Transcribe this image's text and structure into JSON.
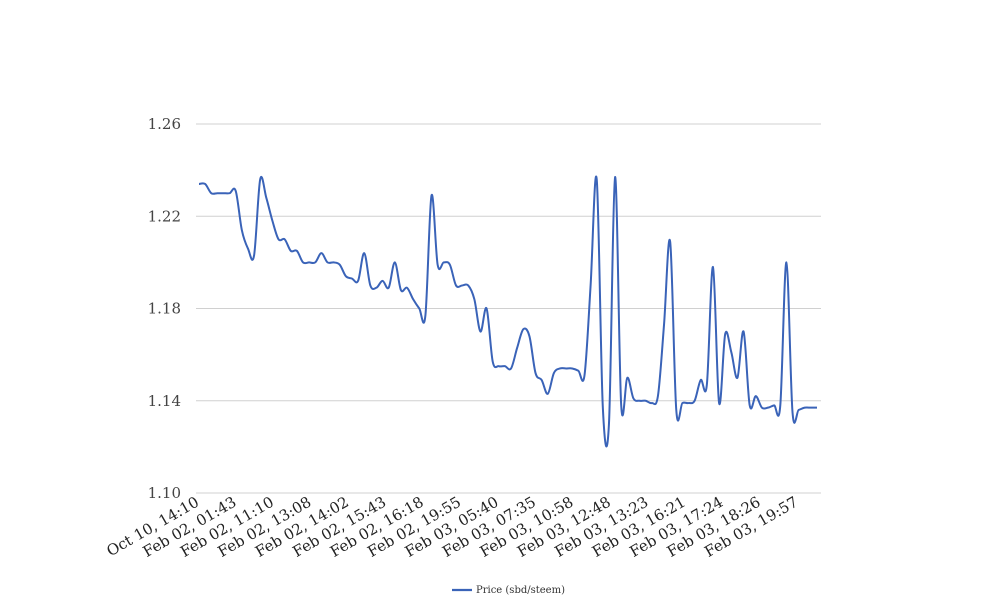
{
  "chart_data": {
    "type": "line",
    "title": "",
    "xlabel": "",
    "ylabel": "",
    "ylim": [
      1.1,
      1.26
    ],
    "yticks": [
      "1.10",
      "1.14",
      "1.18",
      "1.22",
      "1.26"
    ],
    "xtick_labels": [
      "Oct 10, 14:10",
      "Feb 02, 01:43",
      "Feb 02, 11:10",
      "Feb 02, 13:08",
      "Feb 02, 14:02",
      "Feb 02, 15:43",
      "Feb 02, 16:18",
      "Feb 02, 19:55",
      "Feb 03, 05:40",
      "Feb 03, 07:35",
      "Feb 03, 10:58",
      "Feb 03, 12:48",
      "Feb 03, 13:23",
      "Feb 03, 16:21",
      "Feb 03, 17:24",
      "Feb 03, 18:26",
      "Feb 03, 19:57"
    ],
    "grid": true,
    "legend_position": "bottom-center",
    "series": [
      {
        "name": "Price (sbd/steem)",
        "color": "#3a63b8",
        "values": [
          1.234,
          1.234,
          1.23,
          1.23,
          1.23,
          1.23,
          1.231,
          1.214,
          1.206,
          1.203,
          1.236,
          1.228,
          1.218,
          1.21,
          1.21,
          1.205,
          1.205,
          1.2,
          1.2,
          1.2,
          1.204,
          1.2,
          1.2,
          1.199,
          1.194,
          1.193,
          1.192,
          1.204,
          1.19,
          1.189,
          1.192,
          1.189,
          1.2,
          1.188,
          1.189,
          1.184,
          1.18,
          1.177,
          1.229,
          1.199,
          1.2,
          1.199,
          1.19,
          1.19,
          1.19,
          1.184,
          1.17,
          1.18,
          1.157,
          1.155,
          1.155,
          1.154,
          1.163,
          1.171,
          1.168,
          1.152,
          1.149,
          1.143,
          1.152,
          1.154,
          1.154,
          1.154,
          1.153,
          1.151,
          1.19,
          1.236,
          1.137,
          1.13,
          1.237,
          1.138,
          1.15,
          1.141,
          1.14,
          1.14,
          1.139,
          1.142,
          1.173,
          1.209,
          1.136,
          1.139,
          1.139,
          1.14,
          1.149,
          1.147,
          1.198,
          1.139,
          1.169,
          1.161,
          1.15,
          1.17,
          1.138,
          1.142,
          1.137,
          1.137,
          1.138,
          1.138,
          1.2,
          1.135,
          1.136,
          1.137,
          1.137,
          1.137
        ]
      }
    ]
  }
}
